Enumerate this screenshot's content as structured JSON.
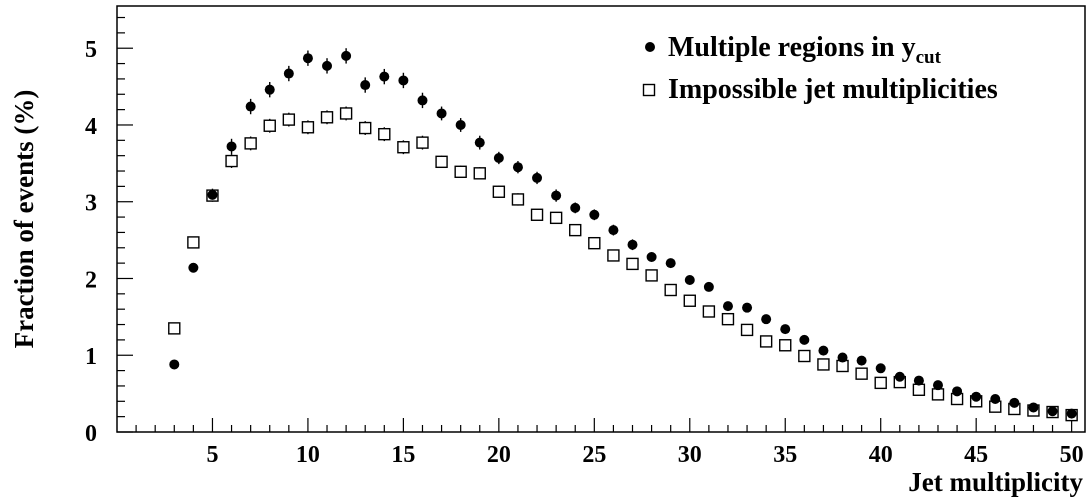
{
  "chart_data": {
    "type": "scatter",
    "xlabel": "Jet multiplicity",
    "ylabel": "Fraction of events (%)",
    "xlim": [
      0,
      50.7
    ],
    "ylim": [
      0,
      5.55
    ],
    "x_ticks": [
      5,
      10,
      15,
      20,
      25,
      30,
      35,
      40,
      45,
      50
    ],
    "y_ticks": [
      0,
      1,
      2,
      3,
      4,
      5
    ],
    "grid": false,
    "legend_position": "top-right",
    "series": [
      {
        "name": "Multiple regions in y",
        "name_subscript": "cut",
        "marker": "filled-circle",
        "color": "#000000",
        "x": [
          3,
          4,
          5,
          6,
          7,
          8,
          9,
          10,
          11,
          12,
          13,
          14,
          15,
          16,
          17,
          18,
          19,
          20,
          21,
          22,
          23,
          24,
          25,
          26,
          27,
          28,
          29,
          30,
          31,
          32,
          33,
          34,
          35,
          36,
          37,
          38,
          39,
          40,
          41,
          42,
          43,
          44,
          45,
          46,
          47,
          48,
          49,
          50
        ],
        "y": [
          0.88,
          2.14,
          3.09,
          3.72,
          4.24,
          4.46,
          4.67,
          4.87,
          4.77,
          4.9,
          4.52,
          4.63,
          4.58,
          4.32,
          4.15,
          4.0,
          3.77,
          3.57,
          3.45,
          3.31,
          3.08,
          2.92,
          2.83,
          2.63,
          2.44,
          2.28,
          2.2,
          1.98,
          1.89,
          1.64,
          1.62,
          1.47,
          1.34,
          1.2,
          1.06,
          0.97,
          0.93,
          0.83,
          0.72,
          0.67,
          0.61,
          0.53,
          0.46,
          0.43,
          0.38,
          0.32,
          0.27,
          0.24
        ],
        "errors": [
          0.03,
          0.06,
          0.08,
          0.1,
          0.1,
          0.1,
          0.1,
          0.1,
          0.1,
          0.1,
          0.1,
          0.1,
          0.1,
          0.1,
          0.09,
          0.09,
          0.09,
          0.08,
          0.08,
          0.08,
          0.08,
          0.07,
          0.07,
          0.07,
          0.07,
          0.06,
          0.06,
          0.06,
          0.05,
          0.05,
          0.05,
          0.05,
          0.04,
          0.04,
          0.04,
          0.04,
          0.04,
          0.03,
          0.03,
          0.03,
          0.03,
          0.03,
          0.03,
          0.03,
          0.02,
          0.02,
          0.02,
          0.02
        ]
      },
      {
        "name": "Impossible jet multiplicities",
        "marker": "open-square",
        "color": "#000000",
        "x": [
          3,
          4,
          5,
          6,
          7,
          8,
          9,
          10,
          11,
          12,
          13,
          14,
          15,
          16,
          17,
          18,
          19,
          20,
          21,
          22,
          23,
          24,
          25,
          26,
          27,
          28,
          29,
          30,
          31,
          32,
          33,
          34,
          35,
          36,
          37,
          38,
          39,
          40,
          41,
          42,
          43,
          44,
          45,
          46,
          47,
          48,
          49,
          50
        ],
        "y": [
          1.35,
          2.47,
          3.08,
          3.53,
          3.76,
          3.99,
          4.07,
          3.97,
          4.1,
          4.15,
          3.96,
          3.88,
          3.71,
          3.77,
          3.52,
          3.39,
          3.37,
          3.13,
          3.03,
          2.83,
          2.79,
          2.63,
          2.46,
          2.3,
          2.19,
          2.04,
          1.85,
          1.71,
          1.57,
          1.47,
          1.33,
          1.18,
          1.13,
          0.99,
          0.88,
          0.86,
          0.76,
          0.64,
          0.65,
          0.55,
          0.49,
          0.43,
          0.4,
          0.33,
          0.3,
          0.28,
          0.26,
          0.22
        ],
        "errors": [
          0.04,
          0.06,
          0.08,
          0.09,
          0.09,
          0.09,
          0.09,
          0.09,
          0.09,
          0.09,
          0.09,
          0.09,
          0.09,
          0.09,
          0.08,
          0.08,
          0.08,
          0.08,
          0.08,
          0.07,
          0.07,
          0.07,
          0.07,
          0.06,
          0.06,
          0.06,
          0.06,
          0.05,
          0.05,
          0.05,
          0.05,
          0.04,
          0.04,
          0.04,
          0.04,
          0.04,
          0.03,
          0.03,
          0.03,
          0.03,
          0.03,
          0.03,
          0.02,
          0.02,
          0.02,
          0.02,
          0.02,
          0.02
        ]
      }
    ]
  }
}
